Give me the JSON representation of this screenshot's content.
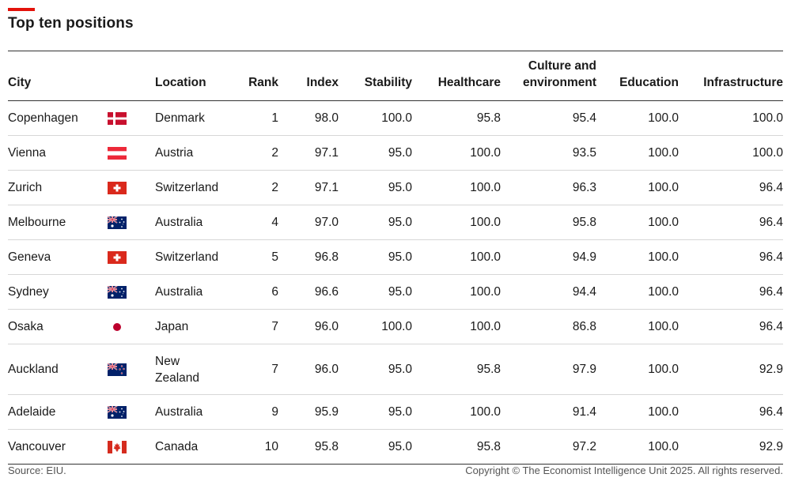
{
  "title": "Top ten positions",
  "headers": {
    "city": "City",
    "location": "Location",
    "rank": "Rank",
    "index": "Index",
    "stability": "Stability",
    "healthcare": "Healthcare",
    "culture_line1": "Culture and",
    "culture_line2": "environment",
    "education": "Education",
    "infrastructure": "Infrastructure"
  },
  "rows": [
    {
      "city": "Copenhagen",
      "flag": "denmark-flag-icon",
      "location": "Denmark",
      "location_line2": "",
      "rank": "1",
      "index": "98.0",
      "stability": "100.0",
      "healthcare": "95.8",
      "culture": "95.4",
      "education": "100.0",
      "infrastructure": "100.0"
    },
    {
      "city": "Vienna",
      "flag": "austria-flag-icon",
      "location": "Austria",
      "location_line2": "",
      "rank": "2",
      "index": "97.1",
      "stability": "95.0",
      "healthcare": "100.0",
      "culture": "93.5",
      "education": "100.0",
      "infrastructure": "100.0"
    },
    {
      "city": "Zurich",
      "flag": "switzerland-flag-icon",
      "location": "Switzerland",
      "location_line2": "",
      "rank": "2",
      "index": "97.1",
      "stability": "95.0",
      "healthcare": "100.0",
      "culture": "96.3",
      "education": "100.0",
      "infrastructure": "96.4"
    },
    {
      "city": "Melbourne",
      "flag": "australia-flag-icon",
      "location": "Australia",
      "location_line2": "",
      "rank": "4",
      "index": "97.0",
      "stability": "95.0",
      "healthcare": "100.0",
      "culture": "95.8",
      "education": "100.0",
      "infrastructure": "96.4"
    },
    {
      "city": "Geneva",
      "flag": "switzerland-flag-icon",
      "location": "Switzerland",
      "location_line2": "",
      "rank": "5",
      "index": "96.8",
      "stability": "95.0",
      "healthcare": "100.0",
      "culture": "94.9",
      "education": "100.0",
      "infrastructure": "96.4"
    },
    {
      "city": "Sydney",
      "flag": "australia-flag-icon",
      "location": "Australia",
      "location_line2": "",
      "rank": "6",
      "index": "96.6",
      "stability": "95.0",
      "healthcare": "100.0",
      "culture": "94.4",
      "education": "100.0",
      "infrastructure": "96.4"
    },
    {
      "city": "Osaka",
      "flag": "japan-flag-icon",
      "location": "Japan",
      "location_line2": "",
      "rank": "7",
      "index": "96.0",
      "stability": "100.0",
      "healthcare": "100.0",
      "culture": "86.8",
      "education": "100.0",
      "infrastructure": "96.4"
    },
    {
      "city": "Auckland",
      "flag": "new-zealand-flag-icon",
      "location": "New",
      "location_line2": "Zealand",
      "rank": "7",
      "index": "96.0",
      "stability": "95.0",
      "healthcare": "95.8",
      "culture": "97.9",
      "education": "100.0",
      "infrastructure": "92.9"
    },
    {
      "city": "Adelaide",
      "flag": "australia-flag-icon",
      "location": "Australia",
      "location_line2": "",
      "rank": "9",
      "index": "95.9",
      "stability": "95.0",
      "healthcare": "100.0",
      "culture": "91.4",
      "education": "100.0",
      "infrastructure": "96.4"
    },
    {
      "city": "Vancouver",
      "flag": "canada-flag-icon",
      "location": "Canada",
      "location_line2": "",
      "rank": "10",
      "index": "95.8",
      "stability": "95.0",
      "healthcare": "95.8",
      "culture": "97.2",
      "education": "100.0",
      "infrastructure": "92.9"
    }
  ],
  "colors": {
    "accent": "#e3120b",
    "text": "#1a1a1a",
    "rule": "#333333",
    "row_rule": "#d7d7d7"
  },
  "footer": {
    "source": "Source: EIU.",
    "copyright": "Copyright © The Economist Intelligence Unit 2025. All rights reserved."
  },
  "chart_data": {
    "type": "table",
    "title": "Top ten positions",
    "columns": [
      "City",
      "Location",
      "Rank",
      "Index",
      "Stability",
      "Healthcare",
      "Culture and environment",
      "Education",
      "Infrastructure"
    ],
    "rows": [
      [
        "Copenhagen",
        "Denmark",
        1,
        98.0,
        100.0,
        95.8,
        95.4,
        100.0,
        100.0
      ],
      [
        "Vienna",
        "Austria",
        2,
        97.1,
        95.0,
        100.0,
        93.5,
        100.0,
        100.0
      ],
      [
        "Zurich",
        "Switzerland",
        2,
        97.1,
        95.0,
        100.0,
        96.3,
        100.0,
        96.4
      ],
      [
        "Melbourne",
        "Australia",
        4,
        97.0,
        95.0,
        100.0,
        95.8,
        100.0,
        96.4
      ],
      [
        "Geneva",
        "Switzerland",
        5,
        96.8,
        95.0,
        100.0,
        94.9,
        100.0,
        96.4
      ],
      [
        "Sydney",
        "Australia",
        6,
        96.6,
        95.0,
        100.0,
        94.4,
        100.0,
        96.4
      ],
      [
        "Osaka",
        "Japan",
        7,
        96.0,
        100.0,
        100.0,
        86.8,
        100.0,
        96.4
      ],
      [
        "Auckland",
        "New Zealand",
        7,
        96.0,
        95.0,
        95.8,
        97.9,
        100.0,
        92.9
      ],
      [
        "Adelaide",
        "Australia",
        9,
        95.9,
        95.0,
        100.0,
        91.4,
        100.0,
        96.4
      ],
      [
        "Vancouver",
        "Canada",
        10,
        95.8,
        95.0,
        95.8,
        97.2,
        100.0,
        92.9
      ]
    ]
  }
}
